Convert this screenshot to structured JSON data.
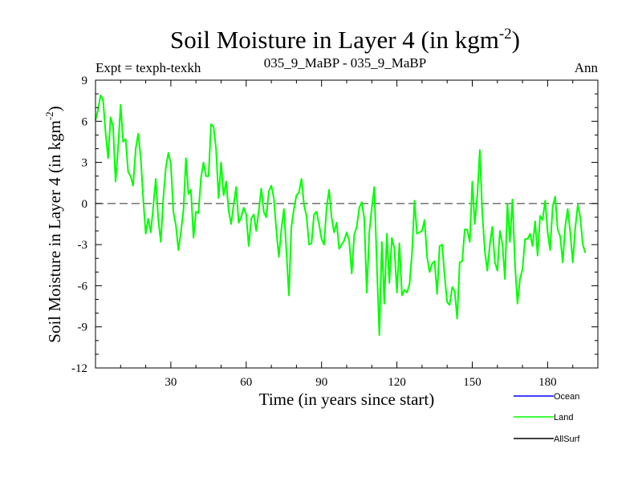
{
  "title_main": "Soil Moisture in Layer 4 (in kgm",
  "title_sup": "-2",
  "title_close": ")",
  "expt_label": "Expt = texph-texkh",
  "subtitle": "035_9_MaBP - 035_9_MaBP",
  "period": "Ann",
  "ylabel_main": "Soil Moisture in Layer 4 (in kgm",
  "ylabel_sup": "-2",
  "ylabel_close": ")",
  "legend": [
    {
      "label": "Ocean",
      "color": "#0000ff"
    },
    {
      "label": "Land",
      "color": "#00ff00"
    },
    {
      "label": "AllSurf",
      "color": "#000000"
    }
  ],
  "chart_data": {
    "type": "line",
    "title": "Soil Moisture in Layer 4 (in kgm-2)",
    "xlabel": "Time (in years since start)",
    "ylabel": "Soil Moisture in Layer 4 (in kgm-2)",
    "xlim": [
      0,
      200
    ],
    "ylim": [
      -12,
      9
    ],
    "xticks": [
      30,
      60,
      90,
      120,
      150,
      180
    ],
    "yticks": [
      -12,
      -9,
      -6,
      -3,
      0,
      3,
      6,
      9
    ],
    "zero_line": true,
    "series": [
      {
        "name": "Land",
        "color": "#00ff00",
        "x_start": 0,
        "x_step": 1,
        "values": [
          6.1,
          6.8,
          7.9,
          7.6,
          5.2,
          3.3,
          6.3,
          5.6,
          1.6,
          4.1,
          7.2,
          4.5,
          4.7,
          2.3,
          2.0,
          1.3,
          4.0,
          5.1,
          3.4,
          0.3,
          -2.2,
          -1.1,
          -2.1,
          -0.2,
          1.8,
          -1.2,
          -2.8,
          0.4,
          2.6,
          3.7,
          2.9,
          -0.6,
          -1.6,
          -3.4,
          -2.1,
          -0.5,
          3.3,
          0.7,
          1.0,
          -2.5,
          -0.6,
          -0.7,
          1.9,
          3.0,
          2.0,
          2.0,
          5.8,
          5.6,
          4.0,
          0.4,
          3.0,
          0.6,
          1.6,
          -0.5,
          -1.5,
          -0.1,
          1.2,
          -1.4,
          -1.0,
          -0.3,
          -0.8,
          -3.1,
          -1.1,
          -0.8,
          -2.0,
          -0.5,
          1.1,
          -0.6,
          -1.0,
          0.9,
          1.3,
          0.4,
          -2.0,
          -3.9,
          -1.9,
          -0.4,
          -3.5,
          -6.7,
          -1.7,
          -0.4,
          0.6,
          0.8,
          1.8,
          -0.1,
          -0.9,
          -3.0,
          -2.9,
          -0.8,
          -0.6,
          -1.5,
          -2.6,
          -3.0,
          -0.3,
          1.0,
          -1.0,
          -2.1,
          -1.4,
          -3.3,
          -3.0,
          -2.7,
          -2.1,
          -2.7,
          -5.1,
          -2.3,
          -1.7,
          -0.3,
          0.1,
          -1.1,
          -6.5,
          -2.1,
          -0.3,
          1.2,
          -4.5,
          -9.6,
          -2.8,
          -7.3,
          -2.2,
          -5.8,
          -2.5,
          -3.3,
          -6.5,
          -2.9,
          -6.7,
          -6.3,
          -6.5,
          -5.9,
          -3.6,
          0.2,
          -2.2,
          -2.1,
          -2.0,
          -1.2,
          -3.9,
          -5.0,
          -4.4,
          -4.2,
          -6.6,
          -3.1,
          -3.0,
          -5.3,
          -7.2,
          -7.4,
          -6.1,
          -6.4,
          -8.4,
          -4.3,
          -4.2,
          -1.9,
          -1.9,
          -2.8,
          1.6,
          -1.5,
          0.6,
          3.9,
          -0.7,
          -3.5,
          -4.9,
          -3.0,
          -1.7,
          -4.3,
          -4.9,
          -2.0,
          -3.0,
          -5.5,
          0.0,
          -2.8,
          0.3,
          -4.4,
          -7.3,
          -5.5,
          -4.8,
          -2.6,
          -2.6,
          -2.2,
          -3.1,
          -1.3,
          -3.8,
          -0.9,
          -1.2,
          0.2,
          -2.1,
          -3.4,
          -0.2,
          0.5,
          -1.9,
          -2.4,
          -4.3,
          -1.7,
          -0.4,
          -2.1,
          -4.3,
          -1.8,
          -0.1,
          -1.0,
          -3.0,
          -3.6
        ]
      }
    ]
  }
}
